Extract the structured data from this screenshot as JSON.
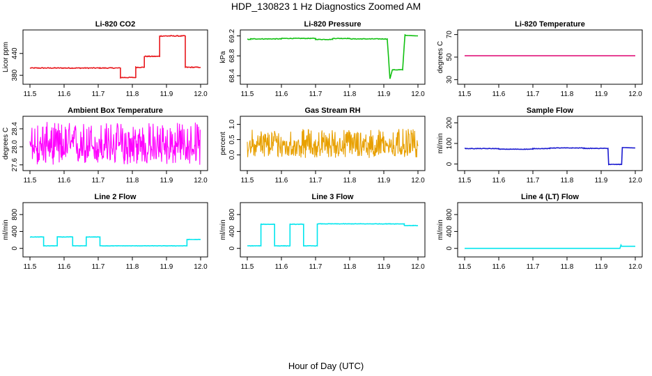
{
  "page": {
    "title": "HDP_130823  1 Hz Diagnostics Zoomed AM",
    "xlabel": "Hour of Day (UTC)"
  },
  "chart_data": [
    {
      "type": "line",
      "title": "Li-820 CO2",
      "ylabel": "Licor ppm",
      "color": "#e8161b",
      "xlim": [
        11.5,
        12.0
      ],
      "ylim": [
        365,
        495
      ],
      "yticks": [
        "380",
        "440"
      ],
      "ytick_values": [
        380,
        440
      ],
      "xticks": [
        "11.5",
        "11.6",
        "11.7",
        "11.8",
        "11.9",
        "12.0"
      ],
      "series": [
        {
          "x": [
            11.5,
            11.765,
            11.765,
            11.81,
            11.81,
            11.835,
            11.835,
            11.88,
            11.88,
            11.955,
            11.955,
            12.0
          ],
          "y": [
            400,
            400,
            374,
            374,
            402,
            402,
            432,
            432,
            488,
            488,
            402,
            402
          ]
        }
      ],
      "noise": 1.2
    },
    {
      "type": "line",
      "title": "Li-820 Pressure",
      "ylabel": "kPa",
      "color": "#10c010",
      "xlim": [
        11.5,
        12.0
      ],
      "ylim": [
        68.3,
        69.25
      ],
      "yticks": [
        "68.4",
        "68.8",
        "69.2"
      ],
      "ytick_values": [
        68.4,
        68.8,
        69.2
      ],
      "xticks": [
        "11.5",
        "11.6",
        "11.7",
        "11.8",
        "11.9",
        "12.0"
      ],
      "series": [
        {
          "x": [
            11.5,
            11.51,
            11.51,
            11.6,
            11.6,
            11.7,
            11.7,
            11.75,
            11.75,
            11.8,
            11.8,
            11.91,
            11.918,
            11.925,
            11.925,
            11.955,
            11.962,
            11.965,
            12.0
          ],
          "y": [
            69.13,
            69.13,
            69.14,
            69.14,
            69.15,
            69.15,
            69.13,
            69.13,
            69.15,
            69.15,
            69.14,
            69.14,
            68.34,
            68.52,
            68.52,
            68.52,
            69.22,
            69.21,
            69.2
          ]
        }
      ],
      "noise": 0.006
    },
    {
      "type": "line",
      "title": "Li-820 Temperature",
      "ylabel": "degrees C",
      "color": "#e0147a",
      "xlim": [
        11.5,
        12.0
      ],
      "ylim": [
        29,
        71
      ],
      "yticks": [
        "30",
        "50",
        "70"
      ],
      "ytick_values": [
        30,
        50,
        70
      ],
      "xticks": [
        "11.5",
        "11.6",
        "11.7",
        "11.8",
        "11.9",
        "12.0"
      ],
      "series": [
        {
          "x": [
            11.5,
            12.0
          ],
          "y": [
            51.2,
            51.2
          ]
        }
      ],
      "noise": 0
    },
    {
      "type": "line",
      "title": "Ambient Box Temperature",
      "ylabel": "degrees C",
      "color": "#ff00ff",
      "xlim": [
        11.5,
        12.0
      ],
      "ylim": [
        27.55,
        28.6
      ],
      "yticks": [
        "27.6",
        "28.0",
        "28.4"
      ],
      "ytick_values": [
        27.6,
        28.0,
        28.4
      ],
      "xticks": [
        "11.5",
        "11.6",
        "11.7",
        "11.8",
        "11.9",
        "12.0"
      ],
      "series": [
        {
          "x": [
            11.5,
            12.0
          ],
          "y": [
            28.0,
            28.0
          ]
        }
      ],
      "noise_band": [
        27.6,
        28.55
      ]
    },
    {
      "type": "line",
      "title": "Gas Stream RH",
      "ylabel": "percent",
      "color": "#e8a000",
      "xlim": [
        11.5,
        12.0
      ],
      "ylim": [
        -0.4,
        1.15
      ],
      "yticks": [
        "0.0",
        "0.5",
        "1.0"
      ],
      "ytick_values": [
        0.0,
        0.5,
        1.0
      ],
      "xticks": [
        "11.5",
        "11.6",
        "11.7",
        "11.8",
        "11.9",
        "12.0"
      ],
      "series": [
        {
          "x": [
            11.5,
            12.0
          ],
          "y": [
            0.3,
            0.3
          ]
        }
      ],
      "noise_band": [
        -0.1,
        0.85
      ]
    },
    {
      "type": "line",
      "title": "Sample Flow",
      "ylabel": "ml/min",
      "color": "#1a1ad0",
      "xlim": [
        11.5,
        12.0
      ],
      "ylim": [
        -15,
        215
      ],
      "yticks": [
        "0",
        "100",
        "200"
      ],
      "ytick_values": [
        0,
        100,
        200
      ],
      "xticks": [
        "11.5",
        "11.6",
        "11.7",
        "11.8",
        "11.9",
        "12.0"
      ],
      "series": [
        {
          "x": [
            11.5,
            11.6,
            11.6,
            11.7,
            11.7,
            11.75,
            11.75,
            11.85,
            11.85,
            11.92,
            11.922,
            11.96,
            11.962,
            12.0
          ],
          "y": [
            75,
            75,
            72,
            72,
            75,
            75,
            78,
            78,
            76,
            76,
            -2,
            -2,
            80,
            78
          ]
        }
      ],
      "noise": 1.2
    },
    {
      "type": "line",
      "title": "Line 2 Flow",
      "ylabel": "ml/min",
      "color": "#00e5ee",
      "xlim": [
        11.5,
        12.0
      ],
      "ylim": [
        -120,
        1000
      ],
      "yticks": [
        "0",
        "400",
        "800"
      ],
      "ytick_values": [
        0,
        400,
        800
      ],
      "xticks": [
        "11.5",
        "11.6",
        "11.7",
        "11.8",
        "11.9",
        "12.0"
      ],
      "series": [
        {
          "x": [
            11.5,
            11.54,
            11.54,
            11.58,
            11.58,
            11.625,
            11.625,
            11.665,
            11.665,
            11.705,
            11.705,
            11.96,
            11.96,
            12.0
          ],
          "y": [
            270,
            270,
            60,
            60,
            270,
            270,
            60,
            60,
            270,
            270,
            60,
            60,
            210,
            210
          ]
        }
      ],
      "noise": 4
    },
    {
      "type": "line",
      "title": "Line 3 Flow",
      "ylabel": "ml/min",
      "color": "#00e5ee",
      "xlim": [
        11.5,
        12.0
      ],
      "ylim": [
        -120,
        1000
      ],
      "yticks": [
        "0",
        "400",
        "800"
      ],
      "ytick_values": [
        0,
        400,
        800
      ],
      "xticks": [
        "11.5",
        "11.6",
        "11.7",
        "11.8",
        "11.9",
        "12.0"
      ],
      "series": [
        {
          "x": [
            11.5,
            11.54,
            11.54,
            11.58,
            11.58,
            11.625,
            11.625,
            11.665,
            11.665,
            11.705,
            11.705,
            11.96,
            11.96,
            12.0
          ],
          "y": [
            60,
            60,
            570,
            570,
            60,
            60,
            570,
            570,
            60,
            60,
            580,
            580,
            540,
            540
          ]
        }
      ],
      "noise": 5
    },
    {
      "type": "line",
      "title": "Line 4 (LT) Flow",
      "ylabel": "ml/min",
      "color": "#00e5ee",
      "xlim": [
        11.5,
        12.0
      ],
      "ylim": [
        -120,
        1000
      ],
      "yticks": [
        "0",
        "400",
        "800"
      ],
      "ytick_values": [
        0,
        400,
        800
      ],
      "xticks": [
        "11.5",
        "11.6",
        "11.7",
        "11.8",
        "11.9",
        "12.0"
      ],
      "series": [
        {
          "x": [
            11.5,
            11.955,
            11.958,
            11.96,
            12.0
          ],
          "y": [
            0,
            0,
            80,
            50,
            50
          ]
        }
      ],
      "noise": 0
    }
  ]
}
